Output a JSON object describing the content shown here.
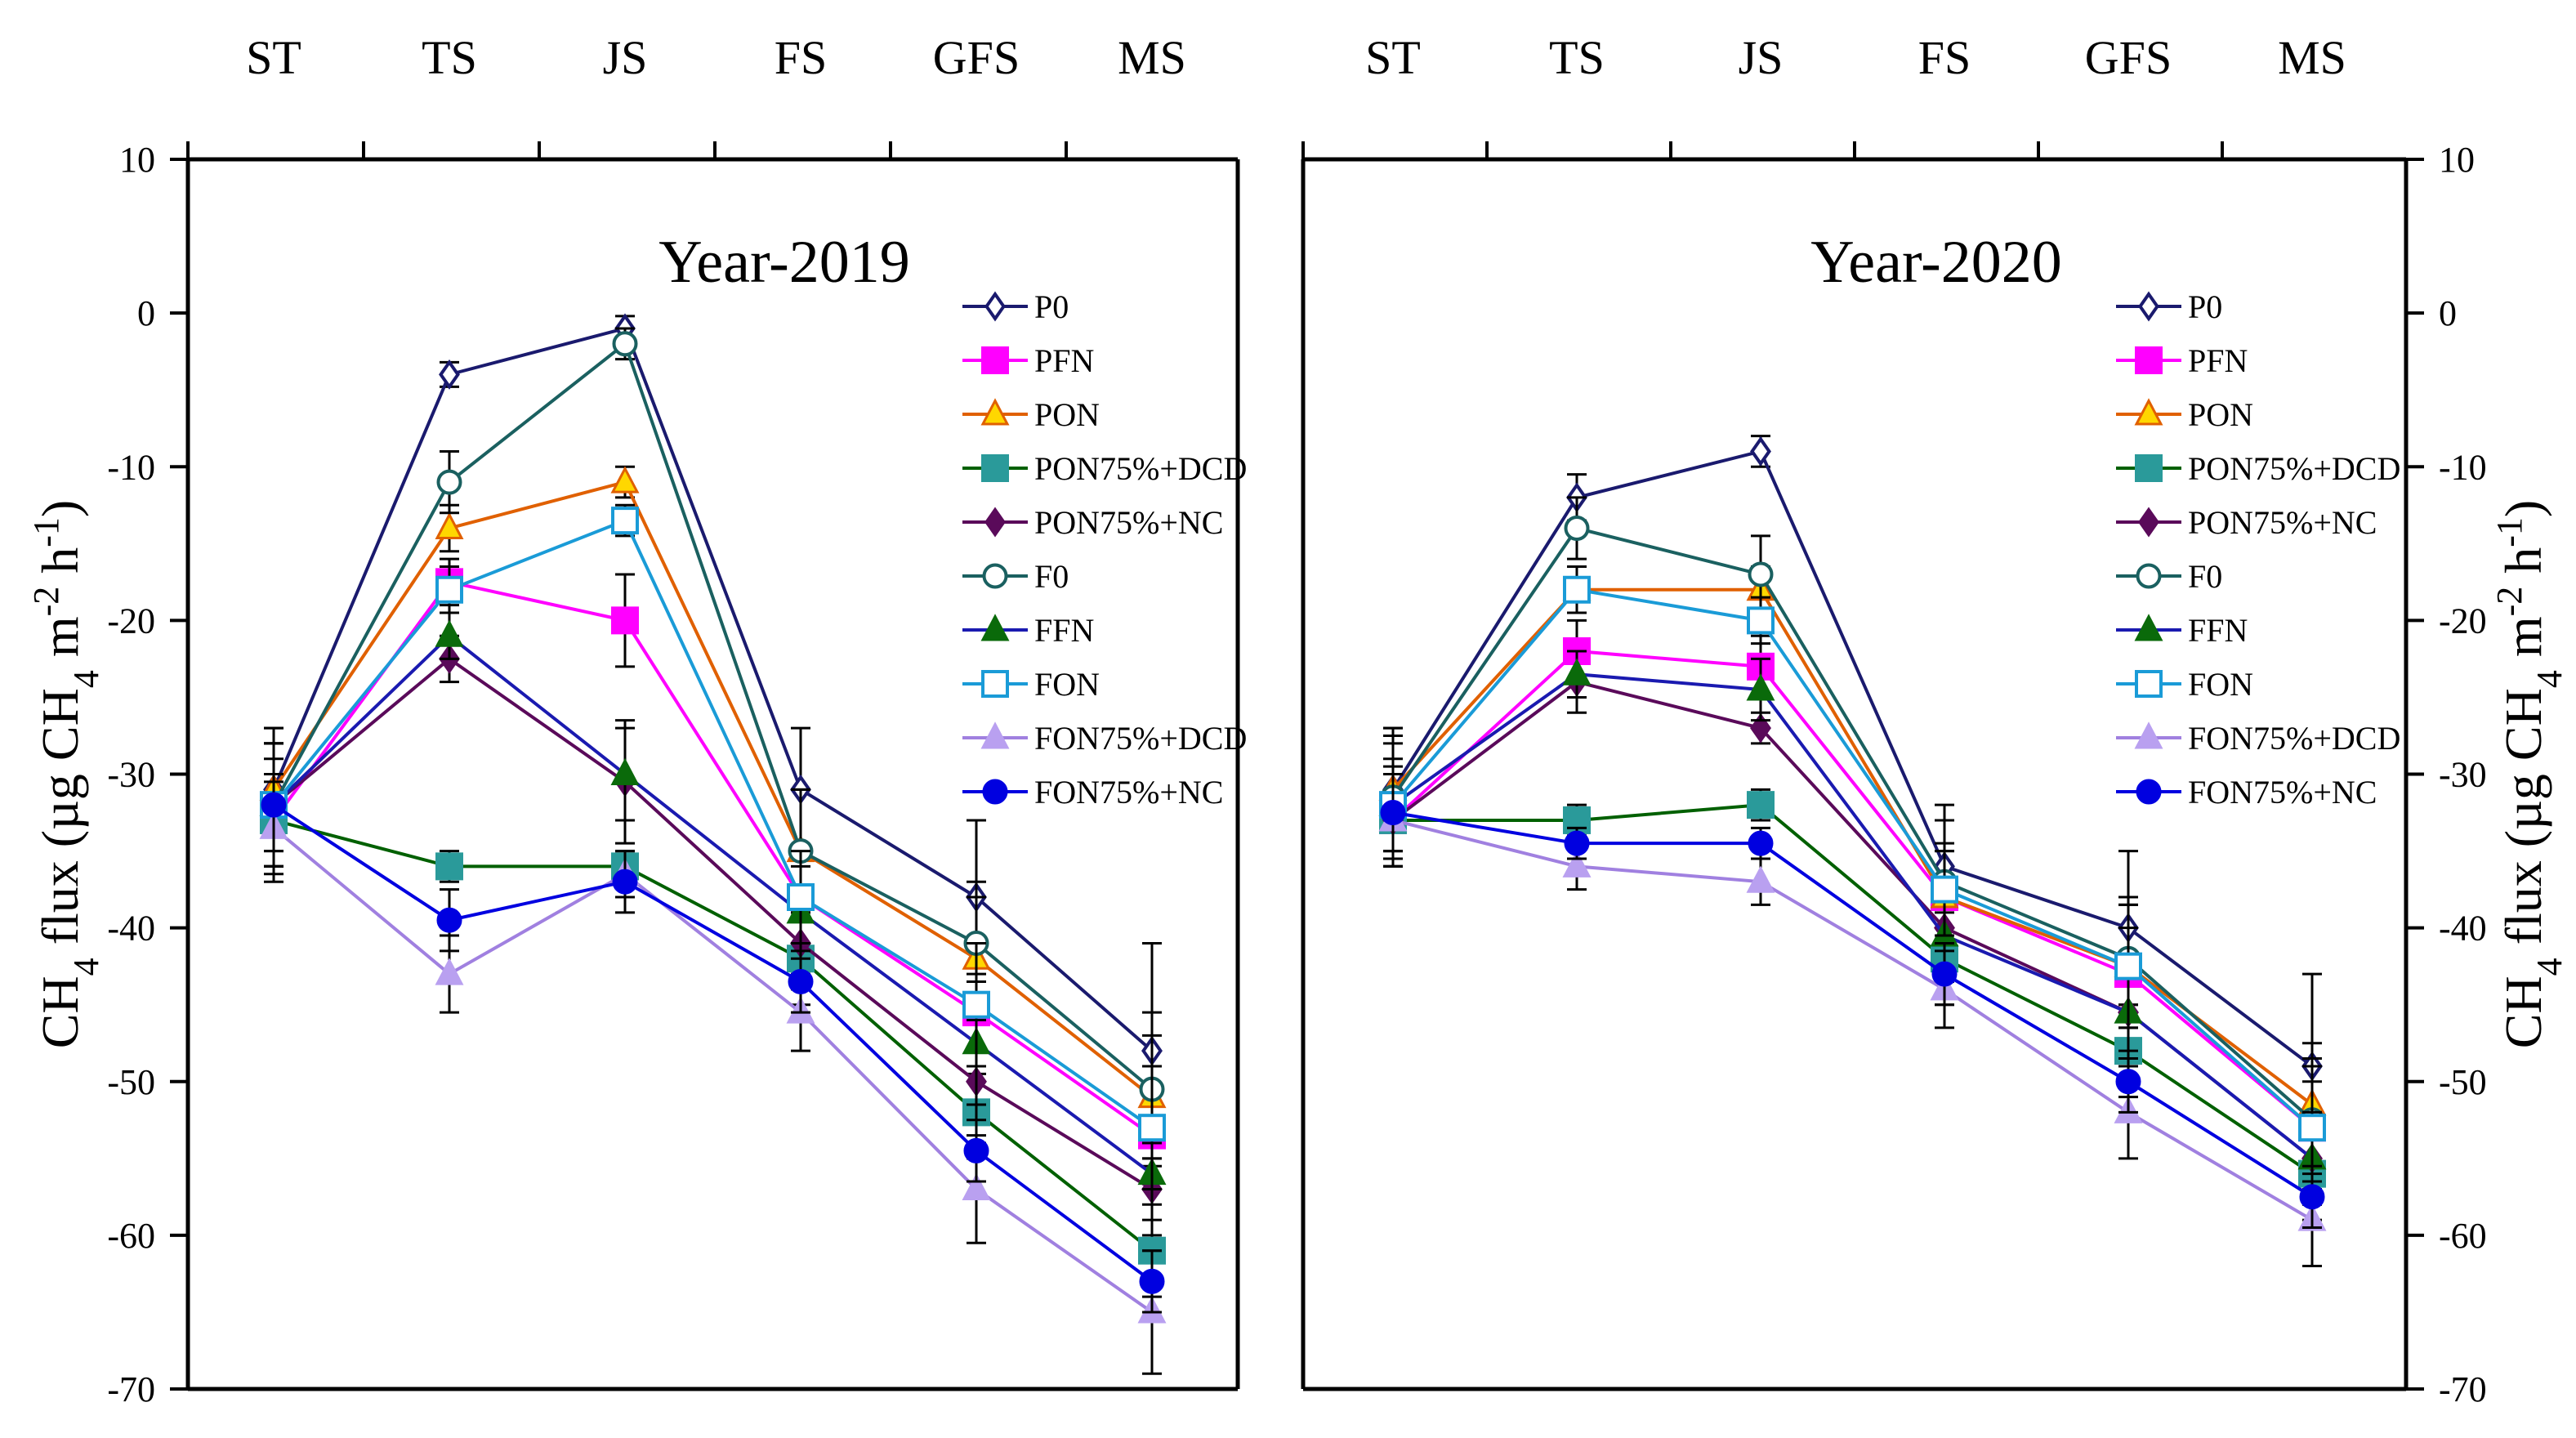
{
  "chart_data": [
    {
      "type": "line",
      "title": "Year-2019",
      "xlabel": "",
      "ylabel": "CH4 flux (µg CH4 m-2 h-1)",
      "ylabel_parts": [
        "CH",
        "4",
        " flux (µg CH",
        "4",
        " m",
        "-2",
        " h",
        "-1",
        ")"
      ],
      "categories": [
        "ST",
        "TS",
        "JS",
        "FS",
        "GFS",
        "MS"
      ],
      "ylim": [
        -70,
        10
      ],
      "yticks": [
        10,
        0,
        -10,
        -20,
        -30,
        -40,
        -50,
        -60,
        -70
      ],
      "ytick_labels": [
        "10",
        "0",
        "-10",
        "-20",
        "-30",
        "-40",
        "-50",
        "-60",
        "-70"
      ],
      "legend_position": "upper-right",
      "series": [
        {
          "name": "P0",
          "color": "#1a1a6e",
          "marker": "diamond-open",
          "values": [
            -31,
            -4,
            -1,
            -31,
            -38,
            -48
          ],
          "errors": [
            4,
            0.8,
            0.8,
            4,
            5,
            7
          ]
        },
        {
          "name": "PFN",
          "color": "#ff00ff",
          "marker": "square",
          "values": [
            -33,
            -17.5,
            -20,
            -38,
            -45.5,
            -53.5
          ],
          "errors": [
            4,
            1.5,
            3,
            3,
            4,
            3
          ]
        },
        {
          "name": "PON",
          "color": "#e06000",
          "marker": "triangle-yellow",
          "values": [
            -31,
            -14,
            -11,
            -35,
            -42,
            -51
          ],
          "errors": [
            4,
            1.5,
            1,
            4,
            4,
            4
          ]
        },
        {
          "name": "PON75%+DCD",
          "color": "#006000",
          "marker": "square-teal",
          "values": [
            -33,
            -36,
            -36,
            -42,
            -52,
            -61
          ],
          "errors": [
            3,
            1,
            1,
            3,
            3,
            3
          ]
        },
        {
          "name": "PON75%+NC",
          "color": "#5a0a5a",
          "marker": "diamond",
          "values": [
            -32,
            -22.5,
            -30.5,
            -41,
            -50,
            -57
          ],
          "errors": [
            4,
            1.5,
            4,
            3,
            4,
            3
          ]
        },
        {
          "name": "F0",
          "color": "#1a6060",
          "marker": "circle-open",
          "values": [
            -32,
            -11,
            -2,
            -35,
            -41,
            -50.5
          ],
          "errors": [
            4,
            2,
            1,
            4,
            4,
            5
          ]
        },
        {
          "name": "FFN",
          "color": "#1a1ab0",
          "marker": "triangle",
          "values": [
            -32,
            -21,
            -30,
            -39,
            -47.5,
            -56
          ],
          "errors": [
            4,
            1.5,
            3,
            3,
            4,
            3
          ]
        },
        {
          "name": "FON",
          "color": "#1a9bd7",
          "marker": "square-open",
          "values": [
            -32,
            -18,
            -13.5,
            -38,
            -45,
            -53
          ],
          "errors": [
            4,
            1.5,
            1,
            3,
            4,
            4
          ]
        },
        {
          "name": "FON75%+DCD",
          "color": "#a080e0",
          "marker": "triangle-light",
          "values": [
            -33.5,
            -43,
            -36.5,
            -45.5,
            -57,
            -65
          ],
          "errors": [
            3,
            2.5,
            1.5,
            2.5,
            3.5,
            4
          ]
        },
        {
          "name": "FON75%+NC",
          "color": "#0000e0",
          "marker": "circle",
          "values": [
            -32,
            -39.5,
            -37,
            -43.5,
            -54.5,
            -63
          ],
          "errors": [
            4,
            2,
            2,
            2,
            2,
            2
          ]
        }
      ]
    },
    {
      "type": "line",
      "title": "Year-2020",
      "xlabel": "",
      "ylabel": "CH4 flux (µg CH4 m-2 h-1)",
      "ylabel_parts": [
        "CH",
        "4",
        " flux (µg CH",
        "4",
        " m",
        "-2",
        " h",
        "-1",
        ")"
      ],
      "categories": [
        "ST",
        "TS",
        "JS",
        "FS",
        "GFS",
        "MS"
      ],
      "ylim": [
        -70,
        10
      ],
      "yticks": [
        10,
        0,
        -10,
        -20,
        -30,
        -40,
        -50,
        -60,
        -70
      ],
      "ytick_labels": [
        "10",
        "0",
        "-10",
        "-20",
        "-30",
        "-40",
        "-50",
        "-60",
        "-70"
      ],
      "legend_position": "upper-right",
      "series": [
        {
          "name": "P0",
          "color": "#1a1a6e",
          "marker": "diamond-open",
          "values": [
            -31,
            -12,
            -9,
            -36,
            -40,
            -49
          ],
          "errors": [
            4,
            1.5,
            1,
            4,
            5,
            6
          ]
        },
        {
          "name": "PFN",
          "color": "#ff00ff",
          "marker": "square",
          "values": [
            -33,
            -22,
            -23,
            -38,
            -43,
            -53
          ],
          "errors": [
            3,
            2,
            2,
            3,
            3,
            3
          ]
        },
        {
          "name": "PON",
          "color": "#e06000",
          "marker": "triangle-yellow",
          "values": [
            -31,
            -18,
            -18,
            -38,
            -42.5,
            -51.5
          ],
          "errors": [
            4,
            1.5,
            1.5,
            3,
            4,
            4
          ]
        },
        {
          "name": "PON75%+DCD",
          "color": "#006000",
          "marker": "square-teal",
          "values": [
            -33,
            -33,
            -32,
            -42,
            -48,
            -56
          ],
          "errors": [
            3,
            1,
            1,
            3,
            3,
            3
          ]
        },
        {
          "name": "PON75%+NC",
          "color": "#5a0a5a",
          "marker": "diamond",
          "values": [
            -33,
            -24,
            -27,
            -40,
            -45.5,
            -55
          ],
          "errors": [
            3,
            2,
            1,
            3,
            3,
            3
          ]
        },
        {
          "name": "F0",
          "color": "#1a6060",
          "marker": "circle-open",
          "values": [
            -31.5,
            -14,
            -17,
            -37,
            -42,
            -52.5
          ],
          "errors": [
            4,
            2,
            2.5,
            4,
            4,
            4
          ]
        },
        {
          "name": "FFN",
          "color": "#1a1ab0",
          "marker": "triangle",
          "values": [
            -32,
            -23.5,
            -24.5,
            -40.5,
            -45.5,
            -55
          ],
          "errors": [
            3,
            1.5,
            2,
            3,
            3,
            3
          ]
        },
        {
          "name": "FON",
          "color": "#1a9bd7",
          "marker": "square-open",
          "values": [
            -32,
            -18,
            -20,
            -37.5,
            -42.5,
            -53
          ],
          "errors": [
            4,
            1.5,
            1.5,
            3,
            4,
            4
          ]
        },
        {
          "name": "FON75%+DCD",
          "color": "#a080e0",
          "marker": "triangle-light",
          "values": [
            -33,
            -36,
            -37,
            -44,
            -52,
            -59
          ],
          "errors": [
            3,
            1.5,
            1.5,
            2.5,
            3,
            3
          ]
        },
        {
          "name": "FON75%+NC",
          "color": "#0000e0",
          "marker": "circle",
          "values": [
            -32.5,
            -34.5,
            -34.5,
            -43,
            -50,
            -57.5
          ],
          "errors": [
            3,
            1,
            1,
            2,
            2,
            2
          ]
        }
      ]
    }
  ]
}
